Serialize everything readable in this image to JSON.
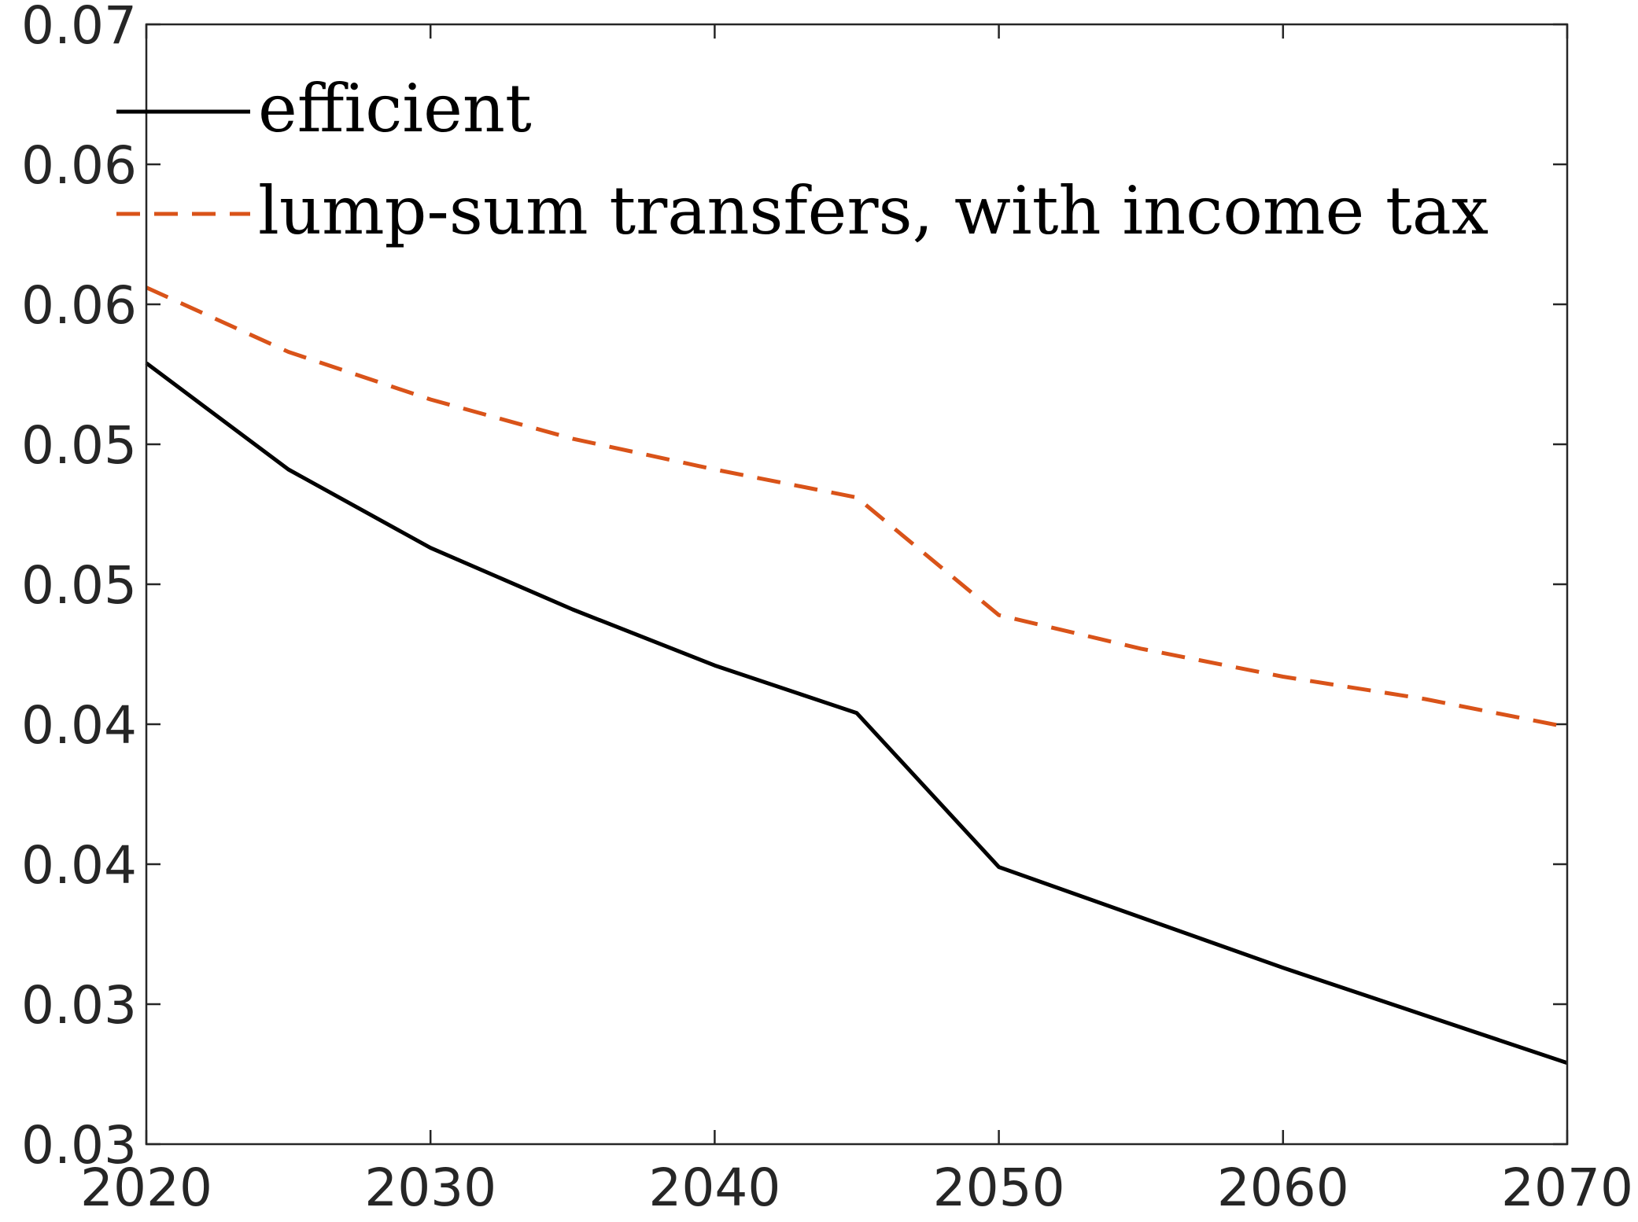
{
  "chart_data": {
    "type": "line",
    "title": "",
    "xlabel": "",
    "ylabel": "",
    "xlim": [
      2020,
      2070
    ],
    "ylim": [
      0.03,
      0.07
    ],
    "x_ticks": [
      2020,
      2030,
      2040,
      2050,
      2060,
      2070
    ],
    "x_tick_labels": [
      "2020",
      "2030",
      "2040",
      "2050",
      "2060",
      "2070"
    ],
    "y_ticks": [
      0.03,
      0.035,
      0.04,
      0.045,
      0.05,
      0.055,
      0.06,
      0.065,
      0.07
    ],
    "y_tick_labels": [
      "0.03",
      "0.03",
      "0.04",
      "0.04",
      "0.05",
      "0.05",
      "0.06",
      "0.06",
      "0.07"
    ],
    "grid": false,
    "legend_position": "top-left",
    "series": [
      {
        "name": "efficient",
        "color": "#000000",
        "line_style": "solid",
        "x": [
          2020,
          2025,
          2030,
          2035,
          2040,
          2045,
          2050,
          2055,
          2060,
          2065,
          2070
        ],
        "y": [
          0.0579,
          0.0541,
          0.0513,
          0.0491,
          0.0471,
          0.0454,
          0.0399,
          0.0381,
          0.0363,
          0.0346,
          0.0329
        ]
      },
      {
        "name": "lump-sum transfers, with income tax",
        "color": "#D95319",
        "line_style": "dashed",
        "x": [
          2020,
          2025,
          2030,
          2035,
          2040,
          2045,
          2050,
          2055,
          2060,
          2065,
          2070
        ],
        "y": [
          0.0606,
          0.0583,
          0.0566,
          0.0552,
          0.0541,
          0.0531,
          0.0489,
          0.0477,
          0.0467,
          0.0459,
          0.0449
        ]
      }
    ]
  }
}
